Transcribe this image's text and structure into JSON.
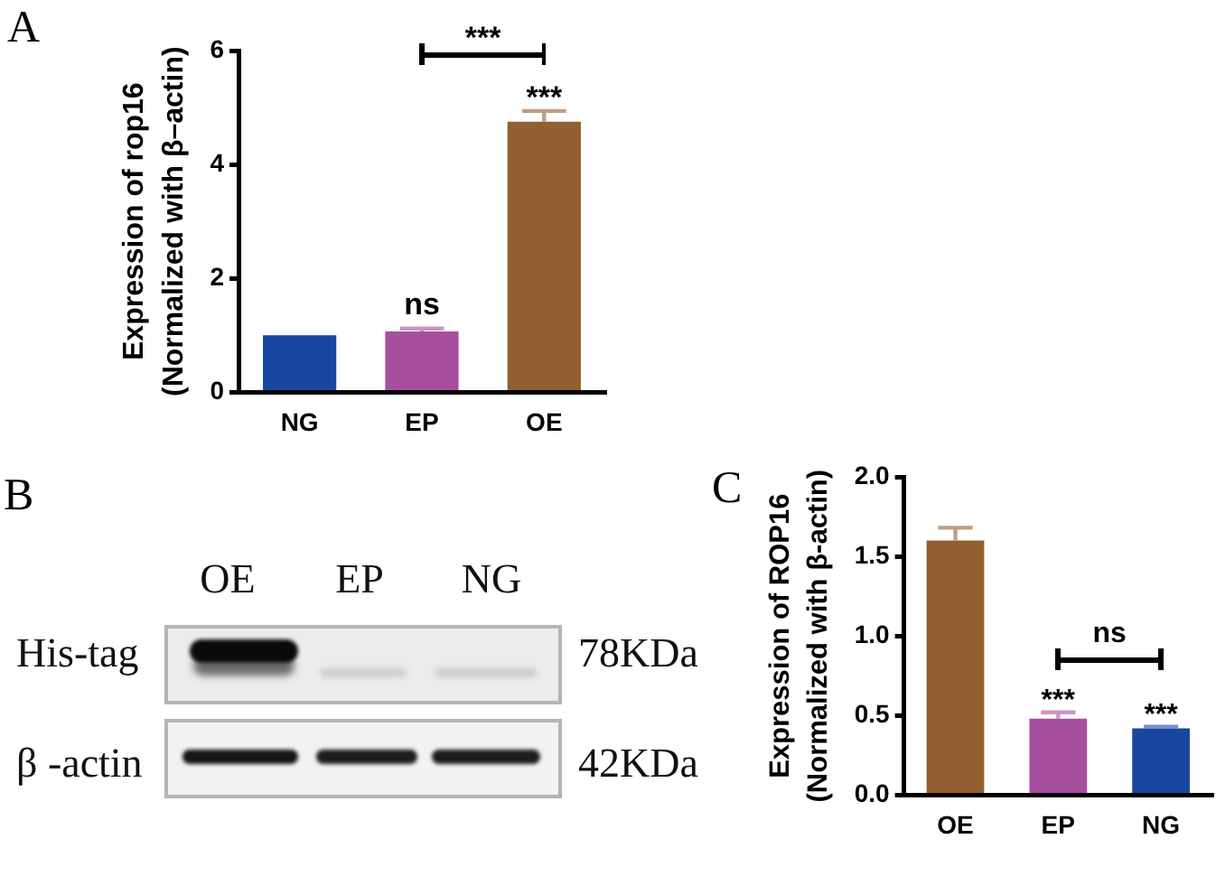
{
  "chart_data": [
    {
      "type": "bar",
      "title": "A",
      "ylabel": "Expression of rop16\n(Normalized with β–actin)",
      "categories": [
        "NG",
        "EP",
        "OE"
      ],
      "values": [
        1.0,
        1.07,
        4.75
      ],
      "colors": [
        "#1a46a0",
        "#a64f9f",
        "#925f2f"
      ],
      "errors": [
        null,
        [
          1.07,
          1.12
        ],
        [
          4.75,
          4.94
        ]
      ],
      "ylim": [
        0,
        6
      ],
      "yticks": [
        0,
        2,
        4,
        6
      ],
      "annotations": [
        {
          "text": "ns",
          "x": "EP",
          "y": 1.07
        },
        {
          "text": "***",
          "x": "OE",
          "y": 4.75
        },
        "***"
      ]
    },
    {
      "type": "other",
      "title": "B",
      "annotations": [
        "OE",
        "EP",
        "NG",
        "His-tag",
        "78KDa",
        "β -actin",
        "42KDa"
      ]
    },
    {
      "type": "bar",
      "title": "C",
      "ylabel": "Expression of ROP16\n(Normalized with β-actin)",
      "categories": [
        "OE",
        "EP",
        "NG"
      ],
      "values": [
        1.6,
        0.48,
        0.42
      ],
      "colors": [
        "#925f2f",
        "#a64f9f",
        "#1a46a0"
      ],
      "errors": [
        [
          1.6,
          1.68
        ],
        [
          0.48,
          0.52
        ],
        [
          0.42,
          0.43
        ]
      ],
      "ylim": [
        0,
        2
      ],
      "yticks": [
        {
          "value": 0,
          "label": "0.0"
        },
        {
          "value": 0.5,
          "label": "0.5"
        },
        {
          "value": 1,
          "label": "1.0"
        },
        {
          "value": 1.5,
          "label": "1.5"
        },
        {
          "value": 2,
          "label": "2.0"
        }
      ],
      "annotations": [
        {
          "text": "***",
          "x": "EP",
          "y": 0.48
        },
        {
          "text": "***",
          "x": "NG",
          "y": 0.42
        },
        "ns"
      ]
    }
  ]
}
